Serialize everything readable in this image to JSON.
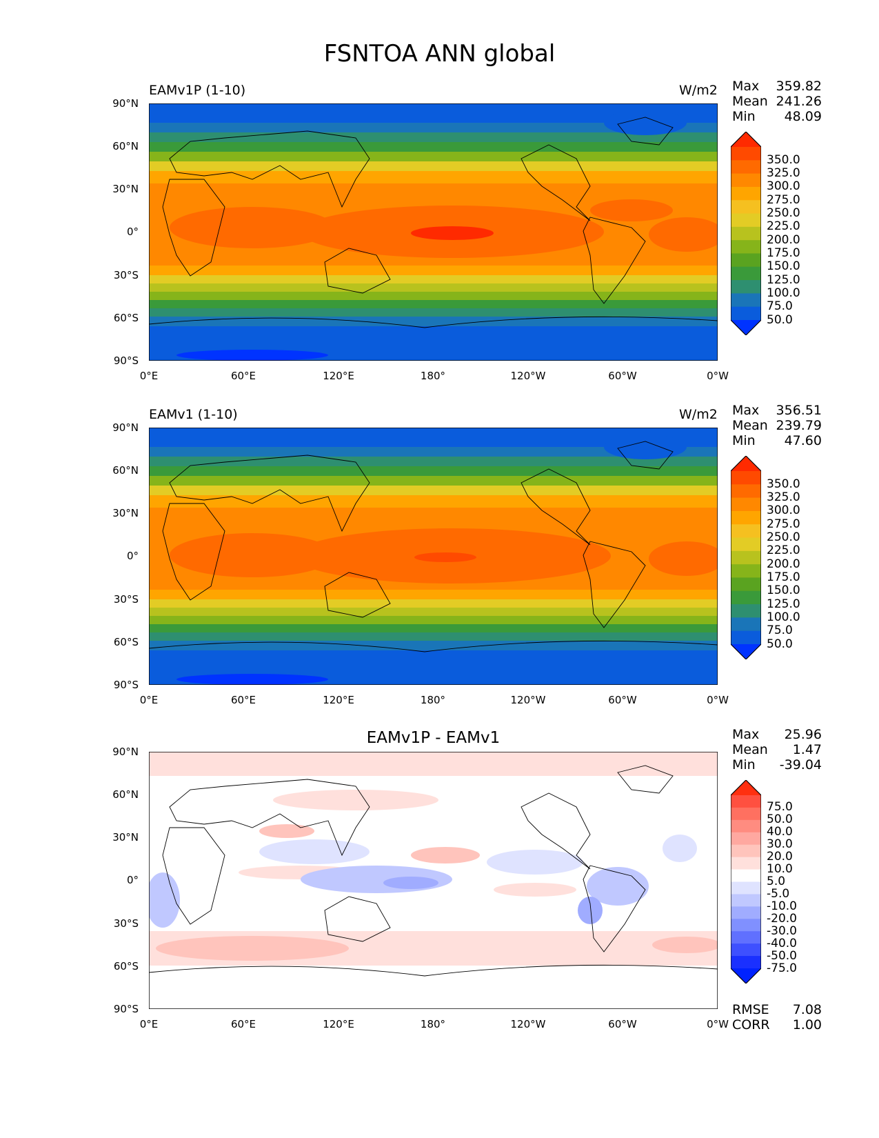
{
  "title": "FSNTOA ANN global",
  "lat_labels": [
    "90°N",
    "60°N",
    "30°N",
    "0°",
    "30°S",
    "60°S",
    "90°S"
  ],
  "lon_labels": [
    "0°E",
    "60°E",
    "120°E",
    "180°",
    "120°W",
    "60°W",
    "0°W"
  ],
  "panels": [
    {
      "title_left": "EAMv1P (1-10)",
      "units": "W/m2",
      "stats": [
        {
          "label": "Max",
          "value": "359.82"
        },
        {
          "label": "Mean",
          "value": "241.26"
        },
        {
          "label": "Min",
          "value": "48.09"
        }
      ],
      "colorbar_ticks": [
        "350.0",
        "325.0",
        "300.0",
        "275.0",
        "250.0",
        "225.0",
        "200.0",
        "175.0",
        "150.0",
        "125.0",
        "100.0",
        "75.0",
        "50.0"
      ],
      "colorbar_colors": [
        "#ff2a00",
        "#ff4a00",
        "#ff6a00",
        "#ff8800",
        "#ffa500",
        "#f5c020",
        "#e3cc25",
        "#b8c21e",
        "#86b41a",
        "#5aa320",
        "#3a9a3a",
        "#2e8f70",
        "#1a75b8",
        "#0a5cdc",
        "#0033ff"
      ]
    },
    {
      "title_left": "EAMv1 (1-10)",
      "units": "W/m2",
      "stats": [
        {
          "label": "Max",
          "value": "356.51"
        },
        {
          "label": "Mean",
          "value": "239.79"
        },
        {
          "label": "Min",
          "value": "47.60"
        }
      ],
      "colorbar_ticks": [
        "350.0",
        "325.0",
        "300.0",
        "275.0",
        "250.0",
        "225.0",
        "200.0",
        "175.0",
        "150.0",
        "125.0",
        "100.0",
        "75.0",
        "50.0"
      ],
      "colorbar_colors": [
        "#ff2a00",
        "#ff4a00",
        "#ff6a00",
        "#ff8800",
        "#ffa500",
        "#f5c020",
        "#e3cc25",
        "#b8c21e",
        "#86b41a",
        "#5aa320",
        "#3a9a3a",
        "#2e8f70",
        "#1a75b8",
        "#0a5cdc",
        "#0033ff"
      ]
    },
    {
      "title_center": "EAMv1P - EAMv1",
      "stats": [
        {
          "label": "Max",
          "value": "25.96"
        },
        {
          "label": "Mean",
          "value": "1.47"
        },
        {
          "label": "Min",
          "value": "-39.04"
        }
      ],
      "colorbar_ticks": [
        "75.0",
        "50.0",
        "40.0",
        "30.0",
        "20.0",
        "10.0",
        "5.0",
        "-5.0",
        "-10.0",
        "-20.0",
        "-30.0",
        "-40.0",
        "-50.0",
        "-75.0"
      ],
      "colorbar_colors": [
        "#ff3010",
        "#ff5040",
        "#ff7060",
        "#ff8c80",
        "#ffa8a0",
        "#ffc4bc",
        "#ffe0dc",
        "#ffffff",
        "#dfe3ff",
        "#c0c8ff",
        "#a0acff",
        "#8090ff",
        "#6070ff",
        "#3e50ff",
        "#1a30ff",
        "#0022ff"
      ],
      "footer_stats": [
        {
          "label": "RMSE",
          "value": "7.08"
        },
        {
          "label": "CORR",
          "value": "1.00"
        }
      ]
    }
  ]
}
